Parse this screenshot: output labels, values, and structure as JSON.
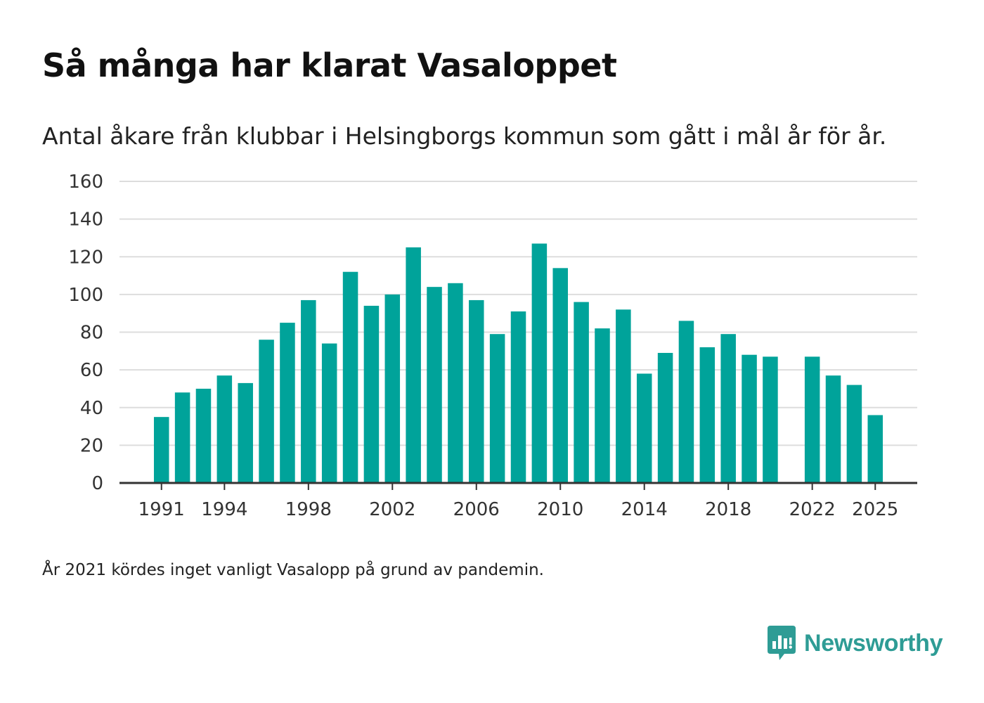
{
  "header": {
    "title": "Så många har klarat Vasaloppet",
    "subtitle": "Antal åkare från klubbar i Helsingborgs kommun som gått i mål år för år."
  },
  "footer": {
    "note": "År 2021 kördes inget vanligt Vasalopp på grund av pandemin.",
    "brand": "Newsworthy"
  },
  "colors": {
    "bar": "#00a39a",
    "grid": "#dddddd",
    "axis": "#333333",
    "brand": "#2e9c95"
  },
  "chart_data": {
    "type": "bar",
    "title": "Så många har klarat Vasaloppet",
    "subtitle": "Antal åkare från klubbar i Helsingborgs kommun som gått i mål år för år.",
    "xlabel": "",
    "ylabel": "",
    "ylim": [
      0,
      160
    ],
    "yticks": [
      0,
      20,
      40,
      60,
      80,
      100,
      120,
      140,
      160
    ],
    "xticks": [
      1991,
      1994,
      1998,
      2002,
      2006,
      2010,
      2014,
      2018,
      2022,
      2025
    ],
    "x_domain": [
      1989,
      2027
    ],
    "grid": true,
    "legend": "none",
    "categories": [
      1991,
      1992,
      1993,
      1994,
      1995,
      1996,
      1997,
      1998,
      1999,
      2000,
      2001,
      2002,
      2003,
      2004,
      2005,
      2006,
      2007,
      2008,
      2009,
      2010,
      2011,
      2012,
      2013,
      2014,
      2015,
      2016,
      2017,
      2018,
      2019,
      2020,
      2021,
      2022,
      2023,
      2024,
      2025
    ],
    "values": [
      35,
      48,
      50,
      57,
      53,
      76,
      85,
      97,
      74,
      112,
      94,
      100,
      125,
      104,
      106,
      97,
      79,
      91,
      127,
      114,
      96,
      82,
      92,
      58,
      69,
      86,
      72,
      79,
      68,
      67,
      null,
      67,
      57,
      52,
      36
    ]
  }
}
